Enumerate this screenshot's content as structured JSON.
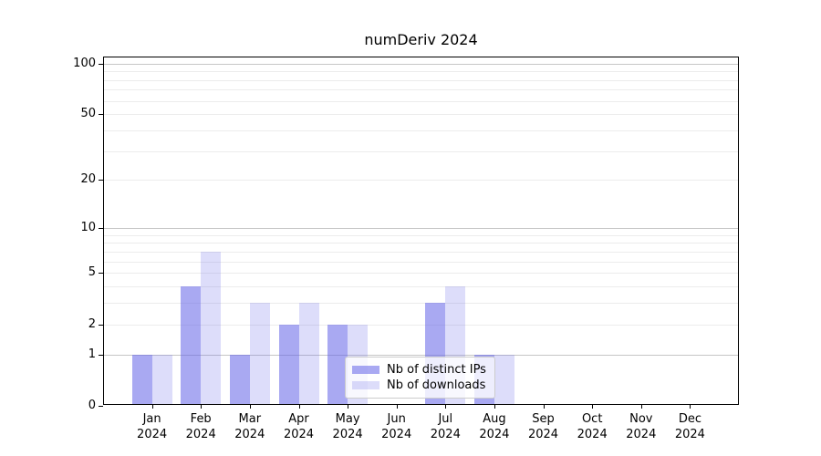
{
  "chart_data": {
    "type": "bar",
    "title": "numDeriv 2024",
    "categories": [
      "Jan",
      "Feb",
      "Mar",
      "Apr",
      "May",
      "Jun",
      "Jul",
      "Aug",
      "Sep",
      "Oct",
      "Nov",
      "Dec"
    ],
    "category_year": "2024",
    "series": [
      {
        "name": "Nb of distinct IPs",
        "key": "distinct-ips",
        "color": "rgba(98,98,232,0.55)",
        "values": [
          1,
          4,
          1,
          2,
          2,
          0,
          3,
          1,
          0,
          0,
          0,
          0
        ]
      },
      {
        "name": "Nb of downloads",
        "key": "downloads",
        "color": "rgba(98,98,232,0.22)",
        "values": [
          1,
          7,
          3,
          3,
          2,
          0,
          4,
          1,
          0,
          0,
          0,
          0
        ]
      }
    ],
    "y_axis": {
      "scale": "log1p",
      "ylim": [
        0,
        100
      ],
      "tick_labels": [
        0,
        1,
        2,
        5,
        10,
        20,
        50,
        100
      ],
      "major_gridlines": [
        1,
        10,
        100
      ],
      "minor_gridlines": [
        2,
        3,
        4,
        5,
        6,
        7,
        8,
        9,
        20,
        30,
        40,
        50,
        60,
        70,
        80,
        90
      ]
    },
    "xlabel": "",
    "ylabel": "",
    "grid": true,
    "legend_position": "lower center"
  },
  "colors": {
    "axis": "#000000",
    "major_grid": "#c6c6c6",
    "minor_grid": "#ececec",
    "background": "#ffffff"
  }
}
